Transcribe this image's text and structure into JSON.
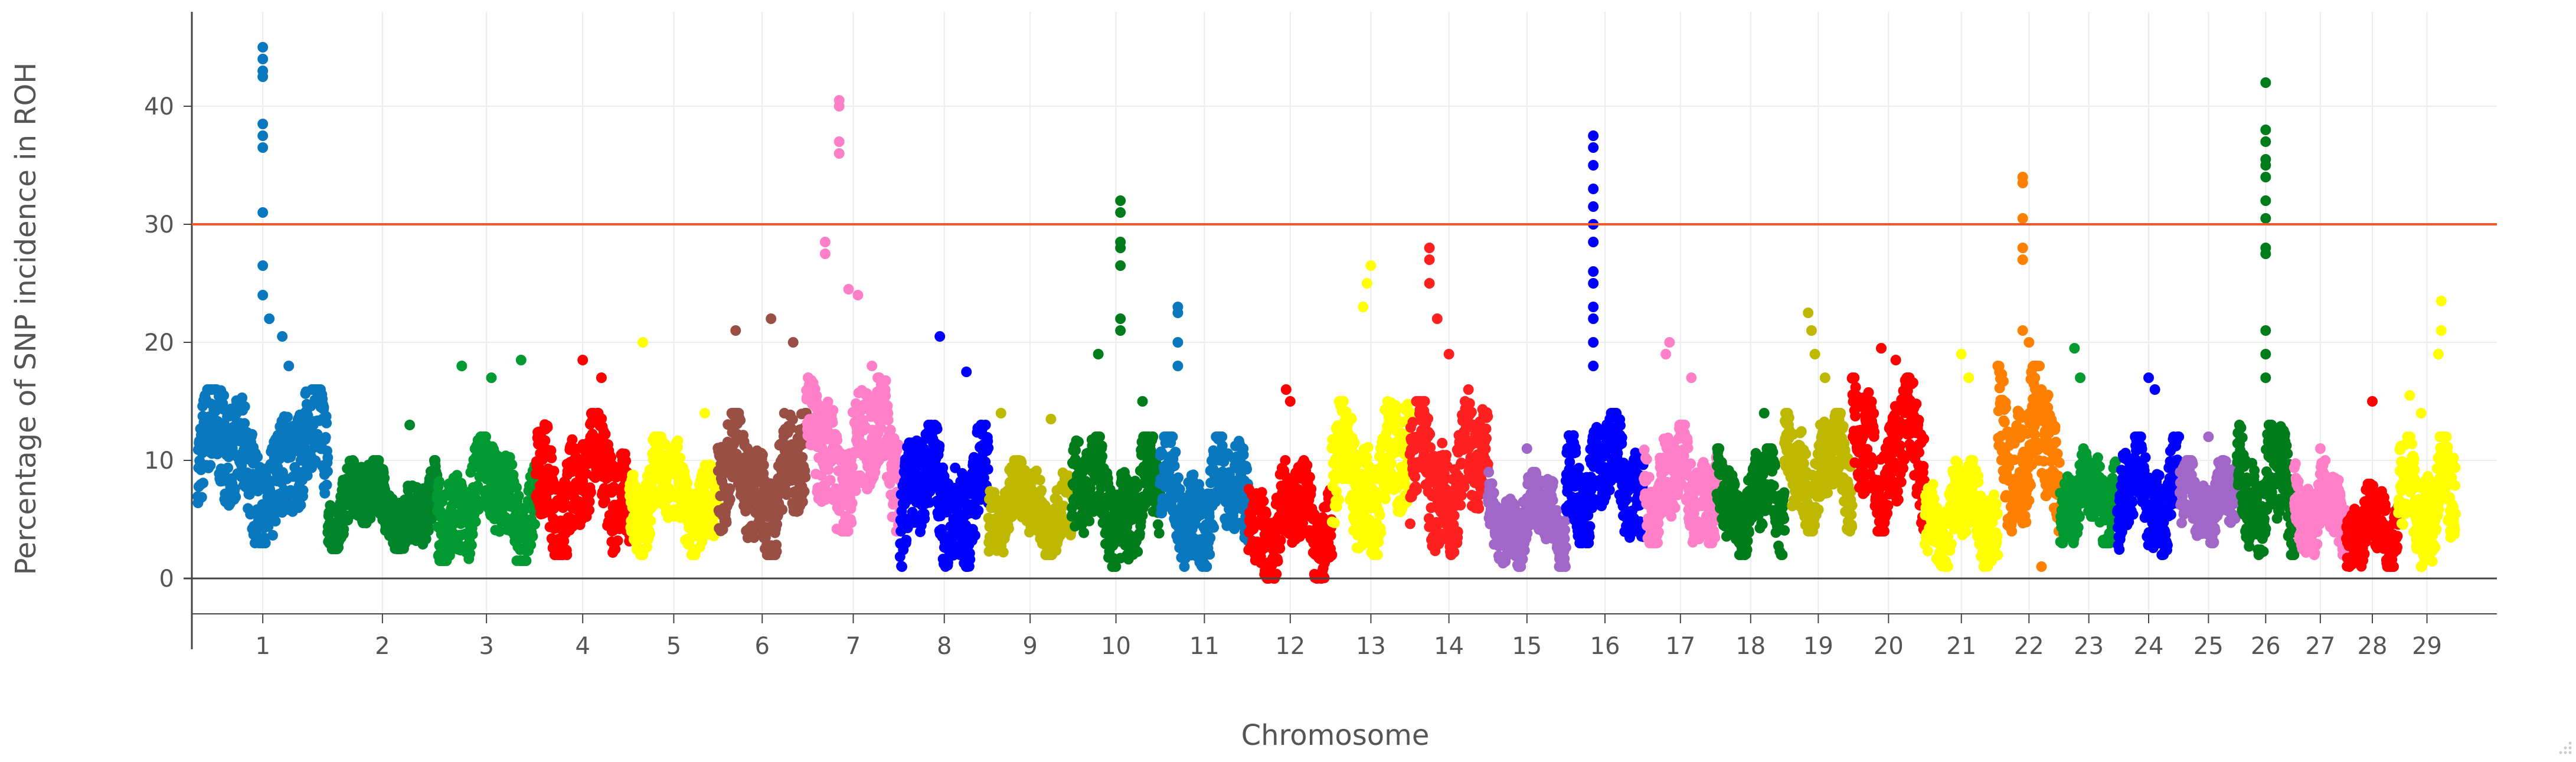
{
  "chart_data": {
    "type": "scatter",
    "title": "",
    "xlabel": "Chromosome",
    "ylabel": "Percentage of SNP incidence in ROH",
    "ylim": [
      -3,
      48
    ],
    "yticks": [
      0,
      10,
      20,
      30,
      40
    ],
    "grid": true,
    "threshold": {
      "value": 30,
      "color": "#f05a28"
    },
    "chromosomes": [
      {
        "label": "1",
        "width": 1.25,
        "color": "#0a78be",
        "min": 3,
        "max": 16,
        "peaks": [
          [
            0.5,
            45
          ],
          [
            0.5,
            44
          ],
          [
            0.5,
            43
          ],
          [
            0.5,
            42.5
          ],
          [
            0.5,
            38.5
          ],
          [
            0.5,
            37.5
          ],
          [
            0.5,
            36.5
          ],
          [
            0.5,
            31
          ],
          [
            0.5,
            26.5
          ],
          [
            0.5,
            24
          ],
          [
            0.55,
            22
          ],
          [
            0.65,
            20.5
          ],
          [
            0.7,
            18
          ],
          [
            0.2,
            15.5
          ]
        ]
      },
      {
        "label": "2",
        "width": 1.05,
        "color": "#00852a",
        "min": 2.5,
        "max": 10,
        "peaks": [
          [
            0.75,
            13
          ]
        ]
      },
      {
        "label": "3",
        "width": 0.95,
        "color": "#009a30",
        "min": 1.5,
        "max": 12,
        "peaks": [
          [
            0.25,
            18
          ],
          [
            0.55,
            17
          ],
          [
            0.85,
            18.5
          ]
        ]
      },
      {
        "label": "4",
        "width": 0.9,
        "color": "#ff0000",
        "min": 2,
        "max": 14,
        "peaks": [
          [
            0.5,
            18.5
          ],
          [
            0.7,
            17
          ]
        ]
      },
      {
        "label": "5",
        "width": 0.85,
        "color": "#ffff00",
        "min": 2,
        "max": 12,
        "peaks": [
          [
            0.15,
            20
          ],
          [
            0.85,
            14
          ]
        ]
      },
      {
        "label": "6",
        "width": 0.85,
        "color": "#9a4f45",
        "min": 2,
        "max": 14,
        "peaks": [
          [
            0.2,
            21
          ],
          [
            0.6,
            22
          ],
          [
            0.85,
            20
          ]
        ]
      },
      {
        "label": "7",
        "width": 0.9,
        "color": "#ff80c8",
        "min": 4,
        "max": 17,
        "peaks": [
          [
            0.35,
            40.5
          ],
          [
            0.35,
            40
          ],
          [
            0.35,
            37
          ],
          [
            0.35,
            36
          ],
          [
            0.2,
            28.5
          ],
          [
            0.2,
            27.5
          ],
          [
            0.45,
            24.5
          ],
          [
            0.55,
            24
          ],
          [
            0.7,
            18
          ]
        ]
      },
      {
        "label": "8",
        "width": 0.85,
        "color": "#0000ff",
        "min": 1,
        "max": 13,
        "peaks": [
          [
            0.45,
            20.5
          ],
          [
            0.75,
            17.5
          ]
        ]
      },
      {
        "label": "9",
        "width": 0.8,
        "color": "#bfb800",
        "min": 2,
        "max": 10,
        "peaks": [
          [
            0.15,
            14
          ],
          [
            0.75,
            13.5
          ]
        ]
      },
      {
        "label": "10",
        "width": 0.85,
        "color": "#007d1a",
        "min": 1,
        "max": 12,
        "peaks": [
          [
            0.55,
            32
          ],
          [
            0.55,
            31
          ],
          [
            0.55,
            28.5
          ],
          [
            0.55,
            28
          ],
          [
            0.55,
            26.5
          ],
          [
            0.55,
            22
          ],
          [
            0.55,
            21
          ],
          [
            0.3,
            19
          ],
          [
            0.8,
            15
          ]
        ]
      },
      {
        "label": "11",
        "width": 0.85,
        "color": "#0a78be",
        "min": 1,
        "max": 12,
        "peaks": [
          [
            0.2,
            23
          ],
          [
            0.2,
            22.5
          ],
          [
            0.2,
            20
          ],
          [
            0.2,
            18
          ]
        ]
      },
      {
        "label": "12",
        "width": 0.8,
        "color": "#ff0000",
        "min": 0,
        "max": 10,
        "peaks": [
          [
            0.45,
            16
          ],
          [
            0.5,
            15
          ]
        ]
      },
      {
        "label": "13",
        "width": 0.75,
        "color": "#ffff00",
        "min": 2,
        "max": 15,
        "peaks": [
          [
            0.45,
            25
          ],
          [
            0.5,
            26.5
          ],
          [
            0.4,
            23
          ]
        ]
      },
      {
        "label": "14",
        "width": 0.75,
        "color": "#ff2020",
        "min": 2,
        "max": 15,
        "peaks": [
          [
            0.25,
            28
          ],
          [
            0.25,
            27
          ],
          [
            0.25,
            25
          ],
          [
            0.35,
            22
          ],
          [
            0.5,
            19
          ],
          [
            0.75,
            16
          ]
        ]
      },
      {
        "label": "15",
        "width": 0.75,
        "color": "#a066c8",
        "min": 1,
        "max": 9,
        "peaks": [
          [
            0.5,
            11
          ]
        ]
      },
      {
        "label": "16",
        "width": 0.75,
        "color": "#0000ff",
        "min": 3,
        "max": 14,
        "peaks": [
          [
            0.35,
            37.5
          ],
          [
            0.35,
            36.5
          ],
          [
            0.35,
            35
          ],
          [
            0.35,
            33
          ],
          [
            0.35,
            31.5
          ],
          [
            0.35,
            30
          ],
          [
            0.35,
            28.5
          ],
          [
            0.35,
            26
          ],
          [
            0.35,
            25
          ],
          [
            0.35,
            23
          ],
          [
            0.35,
            22
          ],
          [
            0.35,
            20
          ],
          [
            0.35,
            18
          ]
        ]
      },
      {
        "label": "17",
        "width": 0.7,
        "color": "#ff80c8",
        "min": 3,
        "max": 13,
        "peaks": [
          [
            0.35,
            20
          ],
          [
            0.3,
            19
          ],
          [
            0.65,
            17
          ]
        ]
      },
      {
        "label": "18",
        "width": 0.65,
        "color": "#007d1a",
        "min": 2,
        "max": 11,
        "peaks": [
          [
            0.7,
            14
          ]
        ]
      },
      {
        "label": "19",
        "width": 0.65,
        "color": "#bfb800",
        "min": 4,
        "max": 14,
        "peaks": [
          [
            0.35,
            22.5
          ],
          [
            0.4,
            21
          ],
          [
            0.45,
            19
          ],
          [
            0.6,
            17
          ]
        ]
      },
      {
        "label": "20",
        "width": 0.7,
        "color": "#ff0000",
        "min": 4,
        "max": 17,
        "peaks": [
          [
            0.4,
            19.5
          ],
          [
            0.6,
            18.5
          ]
        ]
      },
      {
        "label": "21",
        "width": 0.7,
        "color": "#ffff00",
        "min": 1,
        "max": 10,
        "peaks": [
          [
            0.5,
            19
          ],
          [
            0.6,
            17
          ]
        ]
      },
      {
        "label": "22",
        "width": 0.6,
        "color": "#ff8000",
        "min": 4,
        "max": 18,
        "peaks": [
          [
            0.4,
            34
          ],
          [
            0.4,
            33.5
          ],
          [
            0.4,
            30.5
          ],
          [
            0.4,
            28
          ],
          [
            0.4,
            27
          ],
          [
            0.4,
            21
          ],
          [
            0.5,
            20
          ],
          [
            0.7,
            1
          ]
        ]
      },
      {
        "label": "23",
        "width": 0.55,
        "color": "#009a30",
        "min": 3,
        "max": 11,
        "peaks": [
          [
            0.25,
            19.5
          ],
          [
            0.35,
            17
          ]
        ]
      },
      {
        "label": "24",
        "width": 0.6,
        "color": "#0000ff",
        "min": 2,
        "max": 12,
        "peaks": [
          [
            0.5,
            17
          ],
          [
            0.6,
            16
          ]
        ]
      },
      {
        "label": "25",
        "width": 0.55,
        "color": "#a066c8",
        "min": 3,
        "max": 10,
        "peaks": [
          [
            0.5,
            12
          ]
        ]
      },
      {
        "label": "26",
        "width": 0.55,
        "color": "#007d1a",
        "min": 2,
        "max": 13,
        "peaks": [
          [
            0.5,
            42
          ],
          [
            0.5,
            38
          ],
          [
            0.5,
            37
          ],
          [
            0.5,
            35.5
          ],
          [
            0.5,
            35
          ],
          [
            0.5,
            34
          ],
          [
            0.5,
            32
          ],
          [
            0.5,
            30.5
          ],
          [
            0.5,
            28
          ],
          [
            0.5,
            27.5
          ],
          [
            0.5,
            21
          ],
          [
            0.5,
            19
          ],
          [
            0.5,
            17
          ]
        ]
      },
      {
        "label": "27",
        "width": 0.5,
        "color": "#ff80c8",
        "min": 2,
        "max": 10,
        "peaks": [
          [
            0.5,
            11
          ]
        ]
      },
      {
        "label": "28",
        "width": 0.5,
        "color": "#ff0000",
        "min": 1,
        "max": 8,
        "peaks": [
          [
            0.5,
            15
          ]
        ]
      },
      {
        "label": "29",
        "width": 0.55,
        "color": "#ffff00",
        "min": 1,
        "max": 12,
        "peaks": [
          [
            0.75,
            23.5
          ],
          [
            0.75,
            21
          ],
          [
            0.7,
            19
          ],
          [
            0.2,
            15.5
          ],
          [
            0.4,
            14
          ]
        ]
      }
    ]
  }
}
